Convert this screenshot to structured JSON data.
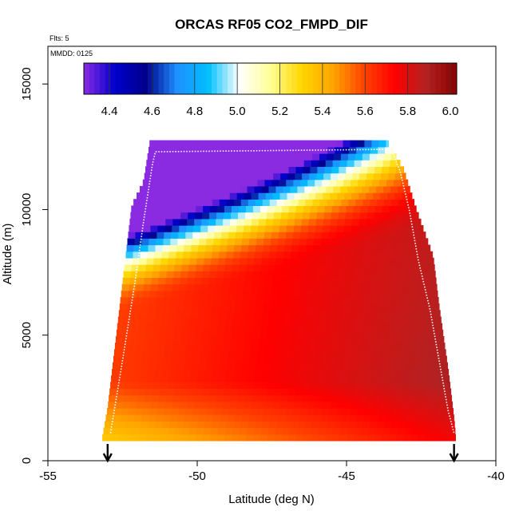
{
  "chart_data": {
    "type": "heatmap",
    "title": "ORCAS RF05 CO2_FMPD_DIF",
    "subtitle_flights": "Flts: 5",
    "subtitle_date": "MMDD: 0125",
    "xlabel": "Latitude (deg N)",
    "ylabel": "Altitude (m)",
    "xlim": [
      -55,
      -40
    ],
    "ylim": [
      0,
      16500
    ],
    "x_ticks": [
      -55,
      -50,
      -45,
      -40
    ],
    "x_tick_labels": [
      "-55",
      "-50",
      "-45",
      "-40"
    ],
    "y_ticks": [
      0,
      5000,
      10000,
      15000
    ],
    "y_tick_labels": [
      "0",
      "5000",
      "10000",
      "15000"
    ],
    "colorbar": {
      "min": 4.28,
      "max": 6.03,
      "ticks": [
        4.4,
        4.6,
        4.8,
        5.0,
        5.2,
        5.4,
        5.6,
        5.8,
        6.0
      ],
      "tick_labels": [
        "4.4",
        "4.6",
        "4.8",
        "5.0",
        "5.2",
        "5.4",
        "5.6",
        "5.8",
        "6.0"
      ],
      "colors": [
        "#8a2be2",
        "#0000cd",
        "#00008b",
        "#1e90ff",
        "#00bfff",
        "#ffffff",
        "#ffff99",
        "#ffd700",
        "#ffa500",
        "#ff4500",
        "#ff0000",
        "#b22222",
        "#8b0000"
      ]
    },
    "flight_track_lat": [
      -52.9,
      -52.5,
      -52.1,
      -51.8,
      -51.5,
      -51.4,
      -43.5,
      -43.2,
      -42.9,
      -42.6,
      -42.2,
      -41.9,
      -41.6,
      -41.4
    ],
    "flight_track_alt": [
      1100,
      4000,
      7000,
      9500,
      11800,
      12300,
      12400,
      11500,
      10000,
      8000,
      6000,
      4000,
      2000,
      1100
    ],
    "arrows_lat": [
      -53.0,
      -41.4
    ],
    "grid": false,
    "legend_placement": "top"
  }
}
